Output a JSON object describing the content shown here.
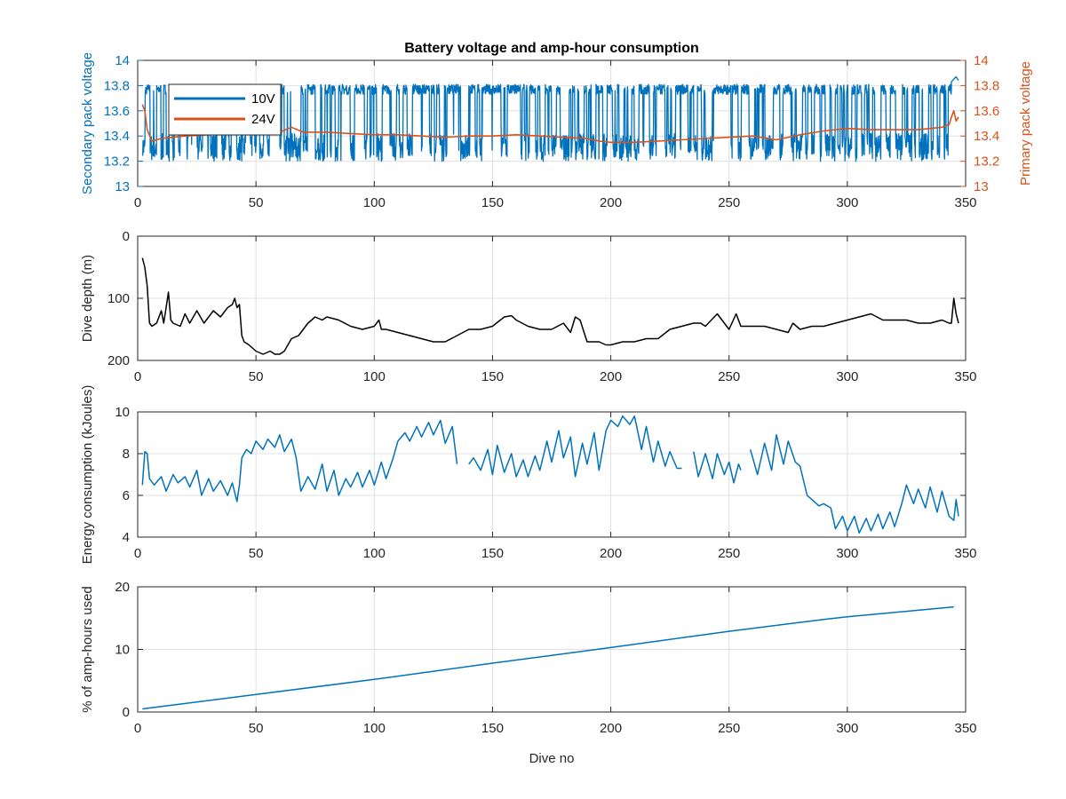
{
  "figure": {
    "width": 1200,
    "height": 900,
    "background": "#ffffff"
  },
  "chart_data": [
    {
      "id": "voltage",
      "type": "line",
      "title": "Battery voltage and amp-hour consumption",
      "xlabel": "",
      "ylabel": "Secondary pack voltage",
      "ylabel_right": "Primary pack voltage",
      "xlim": [
        0,
        350
      ],
      "ylim": [
        13,
        14
      ],
      "ylim_right": [
        13,
        14
      ],
      "xticks": [
        0,
        50,
        100,
        150,
        200,
        250,
        300,
        350
      ],
      "yticks": [
        13,
        13.2,
        13.4,
        13.6,
        13.8,
        14
      ],
      "yticks_right": [
        13,
        13.2,
        13.4,
        13.6,
        13.8,
        14
      ],
      "ytick_color": "#0072BD",
      "ytick_right_color": "#D95319",
      "grid": true,
      "legend": {
        "placement": "top-left",
        "entries": [
          "10V",
          "24V"
        ]
      },
      "series": [
        {
          "name": "10V",
          "color": "#0072BD",
          "axis": "left",
          "pattern": "switching",
          "x_range": [
            2,
            344
          ],
          "high": [
            13.73,
            13.81
          ],
          "low": [
            13.2,
            13.42
          ],
          "end": [
            [
              344,
              13.83
            ],
            [
              346,
              13.87
            ],
            [
              347,
              13.84
            ]
          ]
        },
        {
          "name": "24V",
          "color": "#D95319",
          "axis": "right",
          "x": [
            2,
            3,
            4,
            6,
            10,
            20,
            30,
            40,
            50,
            60,
            65,
            70,
            80,
            90,
            100,
            110,
            120,
            130,
            140,
            150,
            160,
            170,
            180,
            190,
            195,
            200,
            210,
            220,
            230,
            240,
            250,
            260,
            270,
            280,
            290,
            300,
            310,
            320,
            330,
            340,
            343,
            344,
            345,
            346,
            347
          ],
          "y": [
            13.65,
            13.6,
            13.45,
            13.36,
            13.38,
            13.4,
            13.41,
            13.43,
            13.42,
            13.43,
            13.47,
            13.43,
            13.43,
            13.42,
            13.41,
            13.41,
            13.4,
            13.39,
            13.4,
            13.4,
            13.41,
            13.4,
            13.39,
            13.38,
            13.36,
            13.35,
            13.35,
            13.36,
            13.37,
            13.38,
            13.39,
            13.4,
            13.37,
            13.41,
            13.44,
            13.46,
            13.45,
            13.45,
            13.45,
            13.47,
            13.49,
            13.55,
            13.6,
            13.52,
            13.55
          ]
        }
      ]
    },
    {
      "id": "depth",
      "type": "line",
      "xlabel": "",
      "ylabel": "Dive depth (m)",
      "xlim": [
        0,
        350
      ],
      "ylim": [
        0,
        200
      ],
      "y_reversed": true,
      "xticks": [
        0,
        50,
        100,
        150,
        200,
        250,
        300,
        350
      ],
      "yticks": [
        0,
        100,
        200
      ],
      "grid": true,
      "series": [
        {
          "color": "#000000",
          "x": [
            2,
            3,
            4,
            5,
            6,
            8,
            10,
            11,
            12,
            13,
            14,
            15,
            18,
            20,
            22,
            25,
            28,
            30,
            32,
            35,
            38,
            40,
            41,
            42,
            43,
            44,
            45,
            47,
            50,
            53,
            56,
            58,
            60,
            62,
            65,
            68,
            70,
            72,
            75,
            78,
            80,
            85,
            90,
            95,
            100,
            102,
            103,
            105,
            110,
            115,
            120,
            125,
            130,
            135,
            140,
            145,
            150,
            155,
            158,
            160,
            165,
            170,
            175,
            180,
            183,
            185,
            187,
            190,
            195,
            198,
            200,
            205,
            210,
            215,
            220,
            225,
            230,
            235,
            238,
            240,
            245,
            250,
            253,
            255,
            260,
            265,
            270,
            275,
            277,
            280,
            285,
            290,
            295,
            300,
            305,
            310,
            315,
            320,
            325,
            330,
            335,
            340,
            343,
            344,
            345,
            346,
            347
          ],
          "y": [
            35,
            50,
            80,
            140,
            145,
            140,
            120,
            140,
            115,
            90,
            135,
            140,
            145,
            125,
            140,
            120,
            140,
            130,
            120,
            130,
            115,
            110,
            100,
            115,
            110,
            160,
            170,
            175,
            185,
            190,
            185,
            190,
            190,
            185,
            165,
            160,
            150,
            140,
            130,
            135,
            130,
            135,
            145,
            150,
            145,
            135,
            150,
            150,
            155,
            160,
            165,
            170,
            170,
            160,
            150,
            150,
            145,
            130,
            128,
            135,
            145,
            150,
            150,
            140,
            155,
            130,
            135,
            170,
            170,
            175,
            175,
            170,
            170,
            165,
            165,
            150,
            145,
            140,
            140,
            145,
            125,
            150,
            125,
            145,
            145,
            145,
            150,
            155,
            140,
            150,
            145,
            145,
            140,
            135,
            130,
            125,
            135,
            135,
            135,
            140,
            140,
            135,
            140,
            140,
            100,
            125,
            140
          ]
        }
      ]
    },
    {
      "id": "energy",
      "type": "line",
      "xlabel": "",
      "ylabel": "Energy consumption (kJoules)",
      "xlim": [
        0,
        350
      ],
      "ylim": [
        4,
        10
      ],
      "xticks": [
        0,
        50,
        100,
        150,
        200,
        250,
        300,
        350
      ],
      "yticks": [
        4,
        6,
        8,
        10
      ],
      "grid": true,
      "series": [
        {
          "color": "#0072BD",
          "gaps_at": [
            136,
            231,
            256
          ],
          "x": [
            2,
            3,
            4,
            5,
            7,
            10,
            12,
            15,
            17,
            20,
            22,
            25,
            27,
            30,
            32,
            35,
            38,
            40,
            42,
            43,
            44,
            46,
            48,
            50,
            53,
            55,
            58,
            60,
            62,
            65,
            67,
            69,
            72,
            75,
            78,
            80,
            83,
            85,
            88,
            90,
            93,
            95,
            98,
            100,
            103,
            105,
            108,
            110,
            113,
            115,
            118,
            120,
            123,
            125,
            128,
            130,
            133,
            135,
            140,
            142,
            145,
            148,
            150,
            152,
            155,
            158,
            160,
            163,
            165,
            168,
            170,
            173,
            175,
            178,
            180,
            183,
            185,
            188,
            190,
            193,
            195,
            198,
            200,
            203,
            205,
            208,
            210,
            213,
            215,
            218,
            220,
            223,
            225,
            228,
            230,
            235,
            237,
            240,
            243,
            245,
            248,
            250,
            252,
            254,
            255,
            259,
            262,
            265,
            268,
            270,
            273,
            275,
            278,
            280,
            283,
            285,
            288,
            290,
            293,
            295,
            298,
            300,
            303,
            305,
            308,
            310,
            313,
            315,
            318,
            320,
            323,
            325,
            328,
            330,
            333,
            335,
            338,
            340,
            343,
            345,
            346,
            347
          ],
          "y": [
            6.5,
            8.1,
            8.0,
            6.8,
            6.5,
            6.9,
            6.2,
            7.0,
            6.6,
            6.9,
            6.4,
            7.2,
            6.0,
            6.8,
            6.2,
            6.7,
            6.0,
            6.6,
            5.7,
            6.5,
            7.8,
            8.2,
            8.0,
            8.6,
            8.2,
            8.7,
            8.3,
            8.9,
            8.1,
            8.7,
            7.8,
            6.2,
            6.9,
            6.3,
            7.5,
            6.2,
            7.2,
            6.0,
            6.8,
            6.4,
            7.1,
            6.4,
            7.2,
            6.5,
            7.6,
            6.8,
            7.8,
            8.6,
            9.0,
            8.6,
            9.3,
            8.8,
            9.5,
            8.9,
            9.6,
            8.5,
            9.3,
            7.5,
            7.5,
            7.8,
            7.2,
            8.2,
            7.0,
            8.4,
            7.1,
            8.0,
            6.9,
            7.7,
            6.9,
            7.9,
            7.2,
            8.6,
            7.6,
            9.1,
            7.8,
            8.8,
            6.9,
            8.5,
            7.5,
            9.0,
            7.2,
            9.1,
            9.6,
            9.3,
            9.8,
            9.4,
            9.8,
            8.2,
            9.3,
            7.6,
            8.6,
            7.4,
            8.1,
            7.3,
            7.3,
            8.1,
            6.9,
            8.0,
            6.8,
            8.0,
            7.0,
            7.6,
            6.6,
            7.5,
            7.2,
            8.2,
            7.0,
            8.5,
            7.2,
            8.9,
            7.5,
            8.6,
            7.6,
            7.4,
            6.0,
            5.8,
            5.5,
            5.6,
            5.4,
            4.4,
            5.0,
            4.3,
            5.0,
            4.2,
            4.9,
            4.3,
            5.1,
            4.4,
            5.2,
            4.5,
            5.6,
            6.5,
            5.6,
            6.3,
            5.4,
            6.4,
            5.2,
            6.2,
            5.0,
            4.8,
            5.8,
            5.0
          ]
        }
      ]
    },
    {
      "id": "amphours",
      "type": "line",
      "xlabel": "Dive no",
      "ylabel": "% of amp-hours used",
      "xlim": [
        0,
        350
      ],
      "ylim": [
        0,
        20
      ],
      "xticks": [
        0,
        50,
        100,
        150,
        200,
        250,
        300,
        350
      ],
      "yticks": [
        0,
        10,
        20
      ],
      "grid": true,
      "series": [
        {
          "color": "#0072BD",
          "x": [
            2,
            50,
            100,
            150,
            200,
            250,
            290,
            300,
            345
          ],
          "y": [
            0.5,
            2.8,
            5.2,
            7.8,
            10.3,
            12.9,
            14.8,
            15.2,
            16.8
          ]
        }
      ]
    }
  ]
}
